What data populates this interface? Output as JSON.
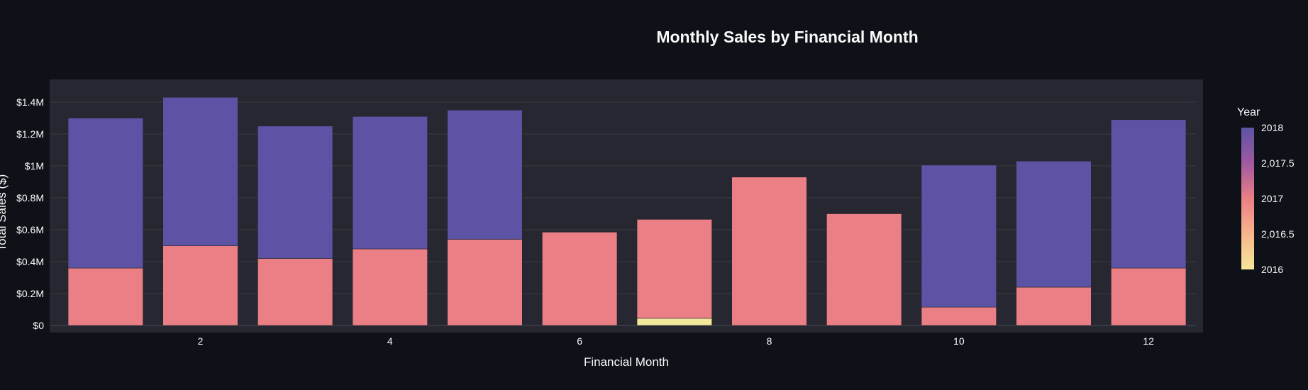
{
  "chart_data": {
    "type": "bar",
    "stacked": true,
    "title": "Monthly Sales by Financial Month",
    "xlabel": "Financial Month",
    "ylabel": "Total Sales ($)",
    "x_categories": [
      1,
      2,
      3,
      4,
      5,
      6,
      7,
      8,
      9,
      10,
      11,
      12
    ],
    "x_tick_labels": [
      "2",
      "4",
      "6",
      "8",
      "10",
      "12"
    ],
    "x_tick_values": [
      2,
      4,
      6,
      8,
      10,
      12
    ],
    "ylim": [
      0,
      1470000
    ],
    "y_tick_values": [
      0,
      200000,
      400000,
      600000,
      800000,
      1000000,
      1200000,
      1400000
    ],
    "y_tick_labels": [
      "$0",
      "$0.2M",
      "$0.4M",
      "$0.6M",
      "$0.8M",
      "$1M",
      "$1.2M",
      "$1.4M"
    ],
    "grid": true,
    "colorbar": {
      "title": "Year",
      "tick_labels": [
        "2018",
        "2,017.5",
        "2017",
        "2,016.5",
        "2016"
      ],
      "tick_values": [
        2018,
        2017.5,
        2017,
        2016.5,
        2016
      ],
      "range": [
        2016,
        2018
      ],
      "placement": "right",
      "colors": [
        "#5c53a5",
        "#a059a0",
        "#eb7f86",
        "#f8b58b",
        "#f3e79b"
      ]
    },
    "series": [
      {
        "name": "2016",
        "color": "#f3e79b",
        "values": [
          0,
          0,
          0,
          0,
          0,
          0,
          45000,
          0,
          0,
          0,
          0,
          0
        ]
      },
      {
        "name": "2017",
        "color": "#eb7f86",
        "values": [
          360000,
          500000,
          420000,
          480000,
          540000,
          585000,
          620000,
          930000,
          700000,
          115000,
          240000,
          360000
        ]
      },
      {
        "name": "2018",
        "color": "#5c53a5",
        "values": [
          940000,
          930000,
          830000,
          830000,
          810000,
          0,
          0,
          0,
          0,
          890000,
          790000,
          930000
        ]
      }
    ]
  }
}
